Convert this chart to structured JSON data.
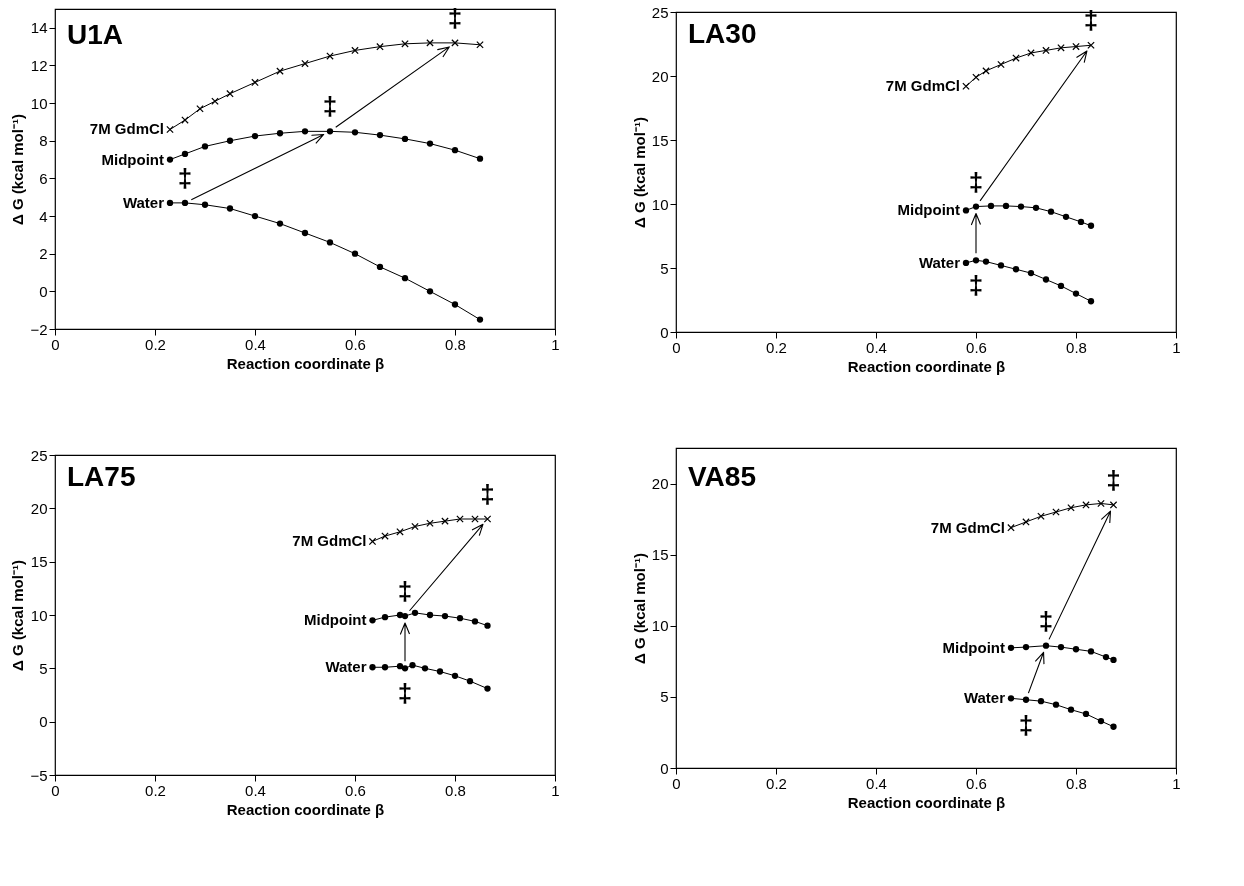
{
  "chart_data": [
    {
      "type": "line",
      "title": "U1A",
      "xlabel": "Reaction coordinate β",
      "ylabel": "Δ G (kcal mol⁻¹)",
      "xlim": [
        0,
        1
      ],
      "xticks": [
        0,
        0.2,
        0.4,
        0.6,
        0.8,
        1
      ],
      "ylim": [
        -2,
        15
      ],
      "yticks": [
        -2,
        0,
        2,
        4,
        6,
        8,
        10,
        12,
        14
      ],
      "grid": false,
      "series": [
        {
          "name": "7M  GdmCl",
          "color": "#000000",
          "marker": "cross",
          "x": [
            0.23,
            0.26,
            0.29,
            0.32,
            0.35,
            0.4,
            0.45,
            0.5,
            0.55,
            0.6,
            0.65,
            0.7,
            0.75,
            0.8,
            0.85
          ],
          "values": [
            8.6,
            9.1,
            9.7,
            10.1,
            10.5,
            11.1,
            11.7,
            12.1,
            12.5,
            12.8,
            13.0,
            13.15,
            13.2,
            13.2,
            13.1
          ]
        },
        {
          "name": "Midpoint",
          "color": "#000000",
          "marker": "circle",
          "x": [
            0.23,
            0.26,
            0.3,
            0.35,
            0.4,
            0.45,
            0.5,
            0.55,
            0.6,
            0.65,
            0.7,
            0.75,
            0.8,
            0.85
          ],
          "values": [
            7.0,
            7.3,
            7.7,
            8.0,
            8.25,
            8.4,
            8.5,
            8.5,
            8.45,
            8.3,
            8.1,
            7.85,
            7.5,
            7.05
          ]
        },
        {
          "name": "Water",
          "color": "#000000",
          "marker": "circle",
          "x": [
            0.23,
            0.26,
            0.3,
            0.35,
            0.4,
            0.45,
            0.5,
            0.55,
            0.6,
            0.65,
            0.7,
            0.75,
            0.8,
            0.85
          ],
          "values": [
            4.7,
            4.7,
            4.6,
            4.4,
            4.0,
            3.6,
            3.1,
            2.6,
            2.0,
            1.3,
            0.7,
            0.0,
            -0.7,
            -1.5
          ]
        }
      ],
      "annotations": [
        {
          "text": "‡",
          "x": 0.8,
          "y": 13.2
        },
        {
          "text": "‡",
          "x": 0.55,
          "y": 8.5
        },
        {
          "text": "‡",
          "x": 0.26,
          "y": 4.7
        }
      ]
    },
    {
      "type": "line",
      "title": "LA30",
      "xlabel": "Reaction coordinate β",
      "ylabel": "Δ G (kcal mol⁻¹)",
      "xlim": [
        0,
        1
      ],
      "xticks": [
        0,
        0.2,
        0.4,
        0.6,
        0.8,
        1
      ],
      "ylim": [
        0,
        25
      ],
      "yticks": [
        0,
        5,
        10,
        15,
        20,
        25
      ],
      "grid": false,
      "series": [
        {
          "name": "7M  GdmCl",
          "color": "#000000",
          "marker": "cross",
          "x": [
            0.58,
            0.6,
            0.62,
            0.65,
            0.68,
            0.71,
            0.74,
            0.77,
            0.8,
            0.83
          ],
          "values": [
            19.2,
            19.9,
            20.4,
            20.9,
            21.4,
            21.8,
            22.0,
            22.2,
            22.3,
            22.4
          ]
        },
        {
          "name": "Midpoint",
          "color": "#000000",
          "marker": "circle",
          "x": [
            0.58,
            0.6,
            0.63,
            0.66,
            0.69,
            0.72,
            0.75,
            0.78,
            0.81,
            0.83
          ],
          "values": [
            9.5,
            9.8,
            9.85,
            9.85,
            9.8,
            9.7,
            9.4,
            9.0,
            8.6,
            8.3
          ]
        },
        {
          "name": "Water",
          "color": "#000000",
          "marker": "circle",
          "x": [
            0.58,
            0.6,
            0.62,
            0.65,
            0.68,
            0.71,
            0.74,
            0.77,
            0.8,
            0.83
          ],
          "values": [
            5.4,
            5.6,
            5.5,
            5.2,
            4.9,
            4.6,
            4.1,
            3.6,
            3.0,
            2.4
          ]
        }
      ],
      "annotations": [
        {
          "text": "‡",
          "x": 0.83,
          "y": 22.4
        },
        {
          "text": "‡",
          "x": 0.6,
          "y": 9.8
        },
        {
          "text": "‡",
          "x": 0.6,
          "y": 5.6
        }
      ]
    },
    {
      "type": "line",
      "title": "LA75",
      "xlabel": "Reaction coordinate β",
      "ylabel": "Δ G (kcal mol⁻¹)",
      "xlim": [
        0,
        1
      ],
      "xticks": [
        0,
        0.2,
        0.4,
        0.6,
        0.8,
        1
      ],
      "ylim": [
        -5,
        25
      ],
      "yticks": [
        -5,
        0,
        5,
        10,
        15,
        20,
        25
      ],
      "grid": false,
      "series": [
        {
          "name": "7M  GdmCl",
          "color": "#000000",
          "marker": "cross",
          "x": [
            0.635,
            0.66,
            0.69,
            0.72,
            0.75,
            0.78,
            0.81,
            0.84,
            0.865
          ],
          "values": [
            16.9,
            17.4,
            17.8,
            18.3,
            18.6,
            18.8,
            19.0,
            19.0,
            19.0
          ]
        },
        {
          "name": "Midpoint",
          "color": "#000000",
          "marker": "circle",
          "x": [
            0.635,
            0.66,
            0.69,
            0.7,
            0.72,
            0.75,
            0.78,
            0.81,
            0.84,
            0.865
          ],
          "values": [
            9.5,
            9.8,
            10.0,
            9.9,
            10.2,
            10.0,
            9.9,
            9.7,
            9.4,
            9.0
          ]
        },
        {
          "name": "Water",
          "color": "#000000",
          "marker": "circle",
          "x": [
            0.635,
            0.66,
            0.69,
            0.7,
            0.715,
            0.74,
            0.77,
            0.8,
            0.83,
            0.865
          ],
          "values": [
            5.1,
            5.1,
            5.2,
            5.0,
            5.3,
            5.0,
            4.7,
            4.3,
            3.8,
            3.1
          ]
        }
      ],
      "annotations": [
        {
          "text": "‡",
          "x": 0.865,
          "y": 19.0
        },
        {
          "text": "‡",
          "x": 0.7,
          "y": 9.9
        },
        {
          "text": "‡",
          "x": 0.7,
          "y": 5.0
        }
      ]
    },
    {
      "type": "line",
      "title": "VA85",
      "xlabel": "Reaction coordinate β",
      "ylabel": "Δ G (kcal mol⁻¹)",
      "xlim": [
        0,
        1
      ],
      "xticks": [
        0,
        0.2,
        0.4,
        0.6,
        0.8,
        1
      ],
      "ylim": [
        0,
        22.5
      ],
      "yticks": [
        0,
        5,
        10,
        15,
        20
      ],
      "grid": false,
      "series": [
        {
          "name": "7M  GdmCl",
          "color": "#000000",
          "marker": "cross",
          "x": [
            0.67,
            0.7,
            0.73,
            0.76,
            0.79,
            0.82,
            0.85,
            0.875
          ],
          "values": [
            16.9,
            17.3,
            17.7,
            18.0,
            18.3,
            18.5,
            18.6,
            18.5
          ]
        },
        {
          "name": "Midpoint",
          "color": "#000000",
          "marker": "circle",
          "x": [
            0.67,
            0.7,
            0.74,
            0.77,
            0.8,
            0.83,
            0.86,
            0.875
          ],
          "values": [
            8.45,
            8.5,
            8.6,
            8.5,
            8.35,
            8.2,
            7.8,
            7.6
          ]
        },
        {
          "name": "Water",
          "color": "#000000",
          "marker": "circle",
          "x": [
            0.67,
            0.7,
            0.73,
            0.76,
            0.79,
            0.82,
            0.85,
            0.875
          ],
          "values": [
            4.9,
            4.8,
            4.7,
            4.45,
            4.1,
            3.8,
            3.3,
            2.9
          ]
        }
      ],
      "annotations": [
        {
          "text": "‡",
          "x": 0.875,
          "y": 18.5
        },
        {
          "text": "‡",
          "x": 0.74,
          "y": 8.6
        },
        {
          "text": "‡",
          "x": 0.7,
          "y": 4.8
        }
      ]
    }
  ]
}
